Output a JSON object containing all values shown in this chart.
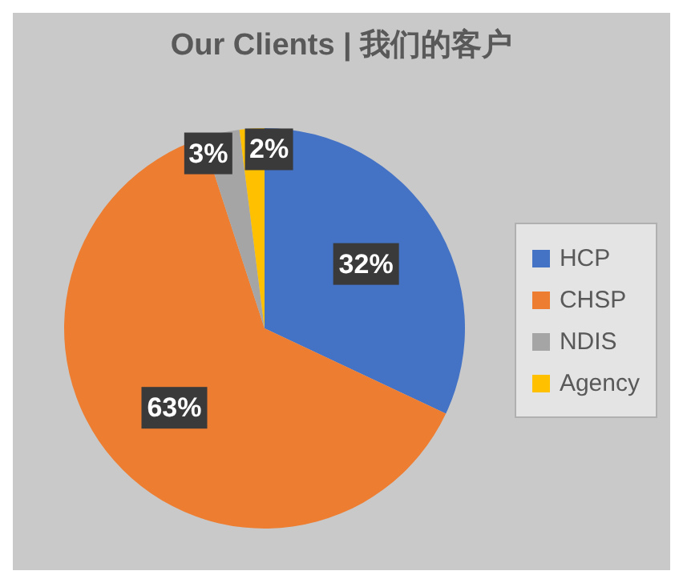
{
  "chart_data": {
    "type": "pie",
    "title": "Our Clients | 我们的客户",
    "categories": [
      "HCP",
      "CHSP",
      "NDIS",
      "Agency"
    ],
    "values": [
      32,
      63,
      3,
      2
    ],
    "colors": [
      "#4472c4",
      "#ed7d31",
      "#a5a5a5",
      "#ffc000"
    ],
    "value_labels": [
      "32%",
      "63%",
      "3%",
      "2%"
    ],
    "legend": "right"
  }
}
